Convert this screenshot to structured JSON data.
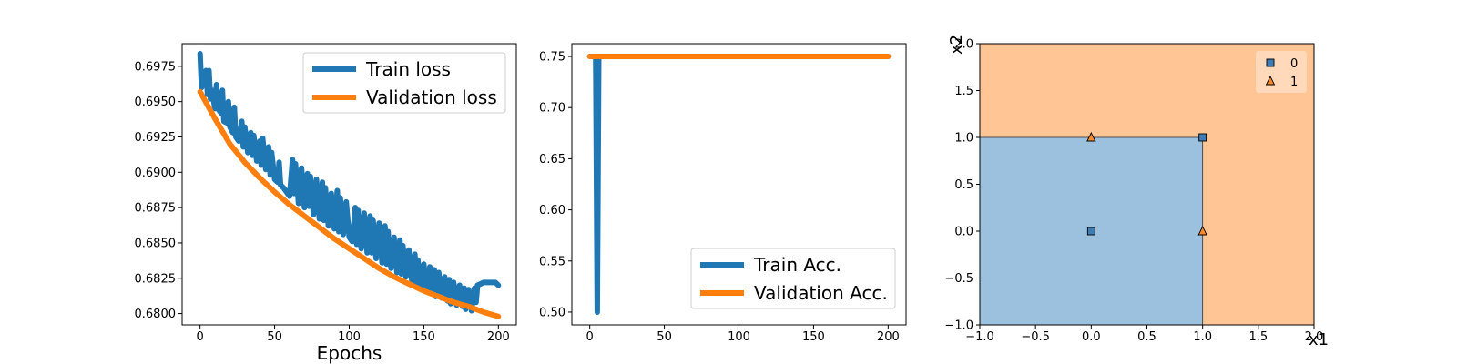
{
  "chart_data": [
    {
      "type": "line",
      "xlabel": "Epochs",
      "ylabel": "",
      "xlim": [
        -12,
        212
      ],
      "ylim": [
        0.6792,
        0.6991
      ],
      "x_ticks": [
        0,
        50,
        100,
        150,
        200
      ],
      "x_tick_labels": [
        "0",
        "50",
        "100",
        "150",
        "200"
      ],
      "y_ticks": [
        0.68,
        0.6825,
        0.685,
        0.6875,
        0.69,
        0.6925,
        0.695,
        0.6975
      ],
      "y_tick_labels": [
        "0.6800",
        "0.6825",
        "0.6850",
        "0.6875",
        "0.6900",
        "0.6925",
        "0.6950",
        "0.6975"
      ],
      "legend_position": "top-right",
      "series": [
        {
          "name": "Train loss",
          "color": "#1f77b4",
          "x": [
            0,
            1,
            2,
            4,
            5,
            6,
            7,
            8,
            10,
            11,
            12,
            14,
            15,
            16,
            18,
            19,
            20,
            22,
            23,
            24,
            26,
            28,
            29,
            30,
            32,
            34,
            35,
            36,
            38,
            40,
            41,
            42,
            44,
            46,
            47,
            48,
            50,
            52,
            53,
            54,
            56,
            58,
            60,
            62,
            63,
            64,
            66,
            68,
            70,
            72,
            73,
            74,
            76,
            78,
            80,
            82,
            83,
            84,
            86,
            88,
            90,
            92,
            93,
            94,
            96,
            98,
            100,
            102,
            104,
            105,
            106,
            108,
            110,
            112,
            114,
            115,
            116,
            118,
            120,
            122,
            124,
            125,
            126,
            128,
            130,
            132,
            134,
            135,
            136,
            138,
            140,
            142,
            144,
            145,
            146,
            148,
            150,
            152,
            154,
            156,
            157,
            158,
            160,
            162,
            164,
            166,
            167,
            168,
            170,
            172,
            174,
            176,
            177,
            178,
            180,
            182,
            184,
            185,
            186,
            188,
            190,
            192,
            194,
            195,
            196,
            198,
            200
          ],
          "values": [
            0.6984,
            0.696,
            0.6963,
            0.6972,
            0.6955,
            0.6972,
            0.6952,
            0.6958,
            0.6945,
            0.6962,
            0.6945,
            0.6942,
            0.6958,
            0.6936,
            0.6935,
            0.695,
            0.6932,
            0.6928,
            0.6946,
            0.6925,
            0.6922,
            0.6936,
            0.6918,
            0.6932,
            0.6914,
            0.6928,
            0.6912,
            0.6926,
            0.6908,
            0.6922,
            0.6905,
            0.6924,
            0.6902,
            0.6918,
            0.6898,
            0.6914,
            0.6895,
            0.6893,
            0.6907,
            0.6891,
            0.6889,
            0.6886,
            0.6883,
            0.6909,
            0.6885,
            0.6906,
            0.6878,
            0.6903,
            0.6875,
            0.6899,
            0.6876,
            0.6897,
            0.687,
            0.6895,
            0.6867,
            0.6893,
            0.6866,
            0.6889,
            0.6862,
            0.6885,
            0.686,
            0.6887,
            0.6858,
            0.6882,
            0.6856,
            0.6879,
            0.6854,
            0.6851,
            0.6875,
            0.6849,
            0.6873,
            0.6846,
            0.6871,
            0.6843,
            0.6869,
            0.6843,
            0.6866,
            0.6839,
            0.6864,
            0.6836,
            0.6862,
            0.6835,
            0.6858,
            0.6832,
            0.6854,
            0.6829,
            0.6852,
            0.6828,
            0.6848,
            0.6826,
            0.6845,
            0.6823,
            0.6842,
            0.6821,
            0.6838,
            0.6819,
            0.6835,
            0.6816,
            0.6833,
            0.6814,
            0.6831,
            0.6812,
            0.6829,
            0.6811,
            0.6826,
            0.6809,
            0.6824,
            0.6807,
            0.6822,
            0.6806,
            0.682,
            0.6805,
            0.6818,
            0.6803,
            0.6817,
            0.6802,
            0.6818,
            0.6808,
            0.682,
            0.6821,
            0.6822,
            0.6822,
            0.6822,
            0.6822,
            0.6822,
            0.6822,
            0.682
          ]
        },
        {
          "name": "Validation loss",
          "color": "#ff7f0e",
          "x": [
            0,
            10,
            20,
            30,
            40,
            50,
            60,
            70,
            80,
            90,
            100,
            110,
            120,
            130,
            140,
            150,
            160,
            170,
            180,
            190,
            200
          ],
          "values": [
            0.6957,
            0.6938,
            0.692,
            0.6907,
            0.6896,
            0.6886,
            0.6877,
            0.6869,
            0.6861,
            0.6853,
            0.6846,
            0.6839,
            0.6832,
            0.6826,
            0.6821,
            0.6816,
            0.6812,
            0.6808,
            0.6805,
            0.6801,
            0.6798
          ]
        }
      ]
    },
    {
      "type": "line",
      "xlabel": "",
      "ylabel": "",
      "xlim": [
        -12,
        212
      ],
      "ylim": [
        0.4875,
        0.7625
      ],
      "x_ticks": [
        0,
        50,
        100,
        150,
        200
      ],
      "x_tick_labels": [
        "0",
        "50",
        "100",
        "150",
        "200"
      ],
      "y_ticks": [
        0.5,
        0.55,
        0.6,
        0.65,
        0.7,
        0.75
      ],
      "y_tick_labels": [
        "0.50",
        "0.55",
        "0.60",
        "0.65",
        "0.70",
        "0.75"
      ],
      "legend_position": "bottom-right",
      "series": [
        {
          "name": "Train Acc.",
          "color": "#1f77b4",
          "x": [
            0,
            4,
            5,
            6,
            200
          ],
          "values": [
            0.75,
            0.75,
            0.5,
            0.75,
            0.75
          ]
        },
        {
          "name": "Validation Acc.",
          "color": "#ff7f0e",
          "x": [
            0,
            200
          ],
          "values": [
            0.75,
            0.75
          ]
        }
      ]
    },
    {
      "type": "scatter",
      "xlabel": "x1",
      "ylabel": "x2",
      "xlim": [
        -1,
        2
      ],
      "ylim": [
        -1,
        2
      ],
      "x_ticks": [
        -1,
        -0.5,
        0,
        0.5,
        1,
        1.5,
        2
      ],
      "x_tick_labels": [
        "−1.0",
        "−0.5",
        "0.0",
        "0.5",
        "1.0",
        "1.5",
        "2.0"
      ],
      "y_ticks": [
        -1,
        -0.5,
        0,
        0.5,
        1,
        1.5,
        2
      ],
      "y_tick_labels": [
        "−1.0",
        "−0.5",
        "0.0",
        "0.5",
        "1.0",
        "1.5",
        "2.0"
      ],
      "legend_position": "top-right",
      "decision_regions": [
        {
          "class": "0",
          "x_range": [
            -1,
            1
          ],
          "y_range": [
            -1,
            1
          ],
          "color": "#9cc1de"
        },
        {
          "class": "1",
          "rest_of_plane": true,
          "color": "#ffc594"
        }
      ],
      "series": [
        {
          "name": "0",
          "marker": "square",
          "color": "#3b7db4",
          "points": [
            [
              0,
              0
            ],
            [
              1,
              1
            ]
          ]
        },
        {
          "name": "1",
          "marker": "triangle",
          "color": "#f5892b",
          "points": [
            [
              0,
              1
            ],
            [
              1,
              0
            ]
          ]
        }
      ]
    }
  ]
}
